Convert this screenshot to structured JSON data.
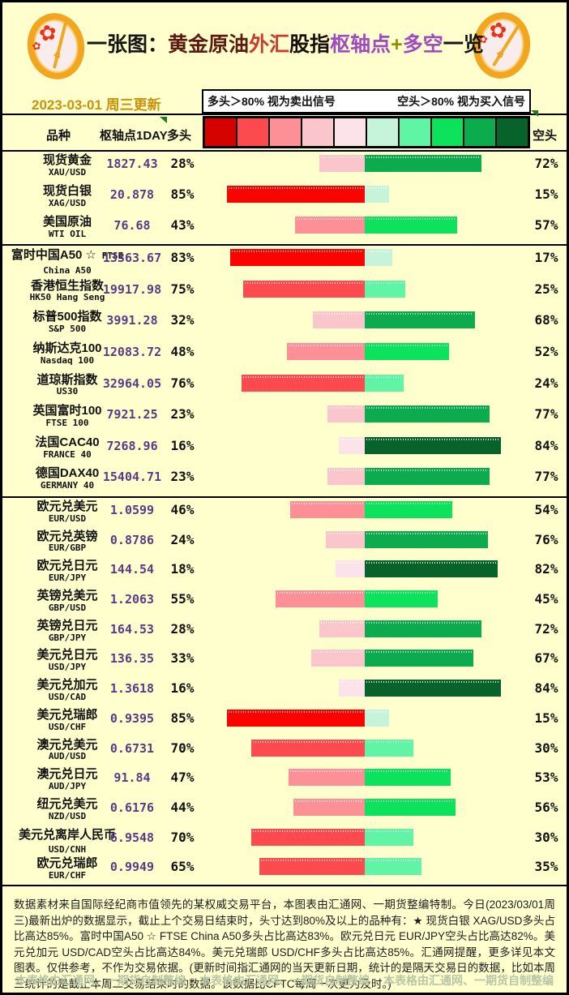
{
  "colors": {
    "background": "#FFFFCE",
    "border": "#000000",
    "date_text": "#C9920A",
    "pivot_text": "#5B3A86",
    "watermark_text": "#B9C6A6",
    "legend_bg": "#FFFFFF",
    "triangle_marker": "#1E7A1E"
  },
  "header": {
    "title_segments": [
      {
        "text": "一张图：",
        "color": "#151515"
      },
      {
        "text": "黄金原油",
        "color": "#5C1A10"
      },
      {
        "text": "外汇",
        "color": "#C93A31"
      },
      {
        "text": "股指",
        "color": "#1A0E08"
      },
      {
        "text": "枢轴点",
        "color": "#A04ABF"
      },
      {
        "text": "+",
        "color": "#8F8F00"
      },
      {
        "text": "多空",
        "color": "#A04ABF"
      },
      {
        "text": "一览",
        "color": "#151515"
      }
    ],
    "date": "2023-03-01 周三更新",
    "legend_left": "多头＞80% 视为卖出信号",
    "legend_right": "空头＞80% 视为买入信号",
    "logo_name": "gold-flower-medallion"
  },
  "table_header": {
    "variety": "品种",
    "pivot": "枢轴点1DAY",
    "bulls": "多头",
    "bears": "空头"
  },
  "chart_data": {
    "type": "bar",
    "title": "一张图：黄金原油外汇股指枢轴点+多空一览",
    "legend": [
      "多头＞80% 视为卖出信号",
      "空头＞80% 视为买入信号"
    ],
    "scale_colors": [
      "#D40300",
      "#FD4A4F",
      "#FC9096",
      "#FBC5CC",
      "#FCE3EA",
      "#C6F4DA",
      "#5FF5A4",
      "#0CE25C",
      "#0CAB4E",
      "#07632A"
    ],
    "bull_bucket_colors": [
      "#FCE3EA",
      "#FBC5CC",
      "#FC9096",
      "#FD4A4F",
      "#FA0300"
    ],
    "bear_bucket_colors": [
      "#C6F4DA",
      "#5FF5A4",
      "#0CE25C",
      "#0CAB4E",
      "#07632A"
    ],
    "bucket_size_percent": 20,
    "groups": [
      {
        "rows": [
          {
            "name": "现货黄金",
            "code": "XAU/USD",
            "pivot": "1827.43",
            "bulls": 28,
            "bears": 72
          },
          {
            "name": "现货白银",
            "code": "XAG/USD",
            "pivot": "20.878",
            "bulls": 85,
            "bears": 15
          },
          {
            "name": "美国原油",
            "code": "WTI OIL",
            "pivot": "76.68",
            "bulls": 43,
            "bears": 57
          }
        ]
      },
      {
        "rows": [
          {
            "name": "富时中国A50 ☆",
            "code": "FTSE China A50",
            "pivot": "13363.67",
            "bulls": 83,
            "bears": 17
          },
          {
            "name": "香港恒生指数",
            "code": "HK50 Hang Seng",
            "pivot": "19917.98",
            "bulls": 75,
            "bears": 25
          },
          {
            "name": "标普500指数",
            "code": "S&P 500",
            "pivot": "3991.28",
            "bulls": 32,
            "bears": 68
          },
          {
            "name": "纳斯达克100",
            "code": "Nasdaq 100",
            "pivot": "12083.72",
            "bulls": 48,
            "bears": 52
          },
          {
            "name": "道琼斯指数",
            "code": "US30",
            "pivot": "32964.05",
            "bulls": 76,
            "bears": 24
          },
          {
            "name": "英国富时100",
            "code": "FTSE 100",
            "pivot": "7921.25",
            "bulls": 23,
            "bears": 77
          },
          {
            "name": "法国CAC40",
            "code": "FRANCE 40",
            "pivot": "7268.96",
            "bulls": 16,
            "bears": 84
          },
          {
            "name": "德国DAX40",
            "code": "GERMANY 40",
            "pivot": "15404.71",
            "bulls": 23,
            "bears": 77
          }
        ]
      },
      {
        "rows": [
          {
            "name": "欧元兑美元",
            "code": "EUR/USD",
            "pivot": "1.0599",
            "bulls": 46,
            "bears": 54
          },
          {
            "name": "欧元兑英镑",
            "code": "EUR/GBP",
            "pivot": "0.8786",
            "bulls": 24,
            "bears": 76
          },
          {
            "name": "欧元兑日元",
            "code": "EUR/JPY",
            "pivot": "144.54",
            "bulls": 18,
            "bears": 82
          },
          {
            "name": "英镑兑美元",
            "code": "GBP/USD",
            "pivot": "1.2063",
            "bulls": 55,
            "bears": 45
          },
          {
            "name": "英镑兑日元",
            "code": "GBP/JPY",
            "pivot": "164.53",
            "bulls": 28,
            "bears": 72
          },
          {
            "name": "美元兑日元",
            "code": "USD/JPY",
            "pivot": "136.35",
            "bulls": 33,
            "bears": 67
          },
          {
            "name": "美元兑加元",
            "code": "USD/CAD",
            "pivot": "1.3618",
            "bulls": 16,
            "bears": 84
          },
          {
            "name": "美元兑瑞郎",
            "code": "USD/CHF",
            "pivot": "0.9395",
            "bulls": 85,
            "bears": 15
          },
          {
            "name": "澳元兑美元",
            "code": "AUD/USD",
            "pivot": "0.6731",
            "bulls": 70,
            "bears": 30
          },
          {
            "name": "澳元兑日元",
            "code": "AUD/JPY",
            "pivot": "91.84",
            "bulls": 47,
            "bears": 53
          },
          {
            "name": "纽元兑美元",
            "code": "NZD/USD",
            "pivot": "0.6176",
            "bulls": 44,
            "bears": 56
          },
          {
            "name": "美元兑离岸人民币",
            "code": "USD/CNH",
            "pivot": "6.9548",
            "bulls": 70,
            "bears": 30
          },
          {
            "name": "欧元兑瑞郎",
            "code": "EUR/CHF",
            "pivot": "0.9949",
            "bulls": 65,
            "bears": 35
          }
        ]
      }
    ]
  },
  "footer": {
    "body": "数据素材来自国际经纪商市值领先的某权威交易平台，本图表由汇通网、一期货整编特制。今日(2023/03/01周三)最新出炉的数据显示，截止上个交易日结束时，头寸达到80%及以上的品种有：★ 现货白银 XAG/USD多头占比高达85%。富时中国A50 ☆ FTSE China A50多头占比高达83%。欧元兑日元 EUR/JPY空头占比高达82%。美元兑加元 USD/CAD空头占比高达84%。美元兑瑞郎 USD/CHF多头占比高达85%。汇通网提醒，更多详见本文图表。仅供参考，不作为交易依据。(更新时间指汇通网的当天更新日期，统计的是隔天交易日的数据，比如本周三统计的是截止本周二交易结束时的数据。该数据比CFTC每周一次更为及时。)",
    "watermarks": [
      "本表格由汇通网、一期货自制整编",
      "本表格由汇通网、一期货自制整编",
      "本表格由汇通网、一期货自制整编"
    ]
  }
}
